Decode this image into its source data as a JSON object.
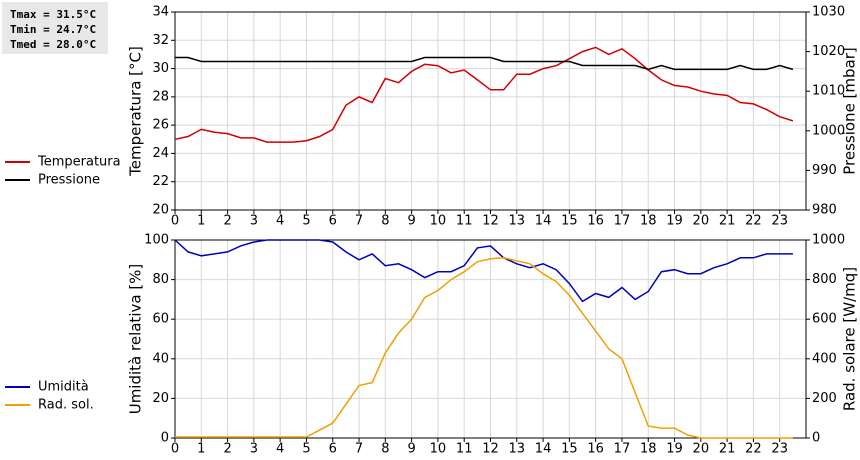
{
  "stats": [
    "Tmax = 31.5°C",
    "Tmin = 24.7°C",
    "Tmed = 28.0°C"
  ],
  "chart_data": [
    {
      "type": "line",
      "ylabel": "Temperatura [°C]",
      "y2label": "Pressione [mbar]",
      "x": [
        0,
        0.5,
        1,
        1.5,
        2,
        2.5,
        3,
        3.5,
        4,
        4.5,
        5,
        5.5,
        6,
        6.5,
        7,
        7.5,
        8,
        8.5,
        9,
        9.5,
        10,
        10.5,
        11,
        11.5,
        12,
        12.5,
        13,
        13.5,
        14,
        14.5,
        15,
        15.5,
        16,
        16.5,
        17,
        17.5,
        18,
        18.5,
        19,
        19.5,
        20,
        20.5,
        21,
        21.5,
        22,
        22.5,
        23,
        23.5
      ],
      "xlim": [
        0,
        24
      ],
      "xticks": [
        0,
        1,
        2,
        3,
        4,
        5,
        6,
        7,
        8,
        9,
        10,
        11,
        12,
        13,
        14,
        15,
        16,
        17,
        18,
        19,
        20,
        21,
        22,
        23
      ],
      "ylim": [
        20,
        34
      ],
      "yticks": [
        20,
        22,
        24,
        26,
        28,
        30,
        32,
        34
      ],
      "y2lim": [
        980,
        1030
      ],
      "y2ticks": [
        980,
        990,
        1000,
        1010,
        1020,
        1030
      ],
      "grid": true,
      "series": [
        {
          "name": "Temperatura",
          "color": "#d40000",
          "axis": "y",
          "values": [
            25.0,
            25.2,
            25.7,
            25.5,
            25.4,
            25.1,
            25.1,
            24.8,
            24.8,
            24.8,
            24.9,
            25.2,
            25.7,
            27.4,
            28.0,
            27.6,
            29.3,
            29.0,
            29.8,
            30.3,
            30.2,
            29.7,
            29.9,
            29.2,
            28.5,
            28.5,
            29.6,
            29.6,
            30.0,
            30.2,
            30.7,
            31.2,
            31.5,
            31.0,
            31.4,
            30.7,
            29.9,
            29.2,
            28.8,
            28.7,
            28.4,
            28.2,
            28.1,
            27.6,
            27.5,
            27.1,
            26.6,
            26.3
          ]
        },
        {
          "name": "Pressione",
          "color": "#000000",
          "axis": "y2",
          "values": [
            1018.5,
            1018.5,
            1017.5,
            1017.5,
            1017.5,
            1017.5,
            1017.5,
            1017.5,
            1017.5,
            1017.5,
            1017.5,
            1017.5,
            1017.5,
            1017.5,
            1017.5,
            1017.5,
            1017.5,
            1017.5,
            1017.5,
            1018.5,
            1018.5,
            1018.5,
            1018.5,
            1018.5,
            1018.5,
            1017.5,
            1017.5,
            1017.5,
            1017.5,
            1017.5,
            1017.5,
            1016.5,
            1016.5,
            1016.5,
            1016.5,
            1016.5,
            1015.5,
            1016.5,
            1015.5,
            1015.5,
            1015.5,
            1015.5,
            1015.5,
            1016.5,
            1015.5,
            1015.5,
            1016.5,
            1015.5
          ]
        }
      ]
    },
    {
      "type": "line",
      "ylabel": "Umidità relativa [%]",
      "y2label": "Rad. solare [W/mq]",
      "x": [
        0,
        0.5,
        1,
        1.5,
        2,
        2.5,
        3,
        3.5,
        4,
        4.5,
        5,
        5.5,
        6,
        6.5,
        7,
        7.5,
        8,
        8.5,
        9,
        9.5,
        10,
        10.5,
        11,
        11.5,
        12,
        12.5,
        13,
        13.5,
        14,
        14.5,
        15,
        15.5,
        16,
        16.5,
        17,
        17.5,
        18,
        18.5,
        19,
        19.5,
        20,
        20.5,
        21,
        21.5,
        22,
        22.5,
        23,
        23.5
      ],
      "xlim": [
        0,
        24
      ],
      "xticks": [
        0,
        1,
        2,
        3,
        4,
        5,
        6,
        7,
        8,
        9,
        10,
        11,
        12,
        13,
        14,
        15,
        16,
        17,
        18,
        19,
        20,
        21,
        22,
        23
      ],
      "ylim": [
        0,
        100
      ],
      "yticks": [
        0,
        20,
        40,
        60,
        80,
        100
      ],
      "y2lim": [
        0,
        1000
      ],
      "y2ticks": [
        0,
        200,
        400,
        600,
        800,
        1000
      ],
      "grid": true,
      "series": [
        {
          "name": "Umidità",
          "color": "#0000c0",
          "axis": "y",
          "values": [
            100,
            94,
            92,
            93,
            94,
            97,
            99,
            100,
            100,
            100,
            100,
            100,
            99,
            94,
            90,
            93,
            87,
            88,
            85,
            81,
            84,
            84,
            87,
            96,
            97,
            91,
            88,
            86,
            88,
            85,
            78,
            69,
            73,
            71,
            76,
            70,
            74,
            84,
            85,
            83,
            83,
            86,
            88,
            91,
            91,
            93,
            93,
            93
          ]
        },
        {
          "name": "Rad. sol.",
          "color": "#f0a000",
          "axis": "y2",
          "values": [
            5,
            5,
            5,
            5,
            5,
            5,
            5,
            5,
            5,
            5,
            5,
            40,
            75,
            170,
            265,
            280,
            430,
            530,
            600,
            710,
            745,
            800,
            840,
            890,
            905,
            910,
            895,
            880,
            830,
            790,
            720,
            630,
            540,
            450,
            400,
            230,
            60,
            50,
            50,
            15,
            0,
            0,
            0,
            0,
            0,
            0,
            0,
            0
          ]
        }
      ]
    }
  ]
}
